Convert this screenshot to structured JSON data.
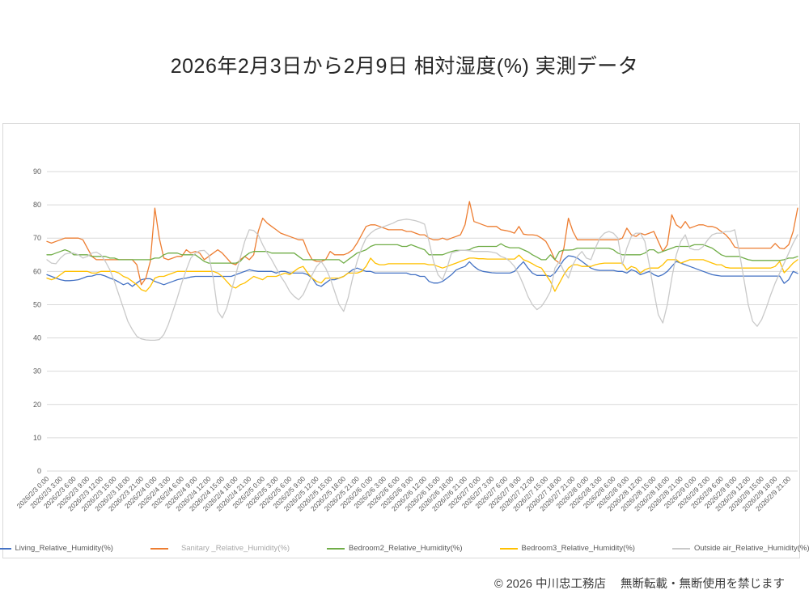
{
  "page": {
    "title": "2026年2月3日から2月9日 相対湿度(%) 実測データ",
    "footer": {
      "copyright": "© 2026 中川忠工務店",
      "notice": "無断転載・無断使用を禁じます"
    }
  },
  "chart_data": {
    "type": "line",
    "title": "2026年2月3日から2月9日 相対湿度(%) 実測データ",
    "xlabel": "",
    "ylabel": "",
    "ylim": [
      0,
      90
    ],
    "y_ticks": [
      0,
      10,
      20,
      30,
      40,
      50,
      60,
      70,
      80,
      90
    ],
    "grid": "horizontal",
    "legend_position": "bottom",
    "x_sampling": "hourly from 2026/2/3 0:00 to 2026/2/9 23:00 (168 points)",
    "x_tick_interval_hours": 3,
    "x_tick_labels": [
      "2026/2/3 0:00",
      "2026/2/3 3:00",
      "2026/2/3 6:00",
      "2026/2/3 9:00",
      "2026/2/3 12:00",
      "2026/2/3 15:00",
      "2026/2/3 18:00",
      "2026/2/3 21:00",
      "2026/2/4 0:00",
      "2026/2/4 3:00",
      "2026/2/4 6:00",
      "2026/2/4 9:00",
      "2026/2/4 12:00",
      "2026/2/4 15:00",
      "2026/2/4 18:00",
      "2026/2/4 21:00",
      "2026/2/5 0:00",
      "2026/2/5 3:00",
      "2026/2/5 6:00",
      "2026/2/5 9:00",
      "2026/2/5 12:00",
      "2026/2/5 15:00",
      "2026/2/5 18:00",
      "2026/2/5 21:00",
      "2026/2/6 0:00",
      "2026/2/6 3:00",
      "2026/2/6 6:00",
      "2026/2/6 9:00",
      "2026/2/6 12:00",
      "2026/2/6 15:00",
      "2026/2/6 18:00",
      "2026/2/6 21:00",
      "2026/2/7 0:00",
      "2026/2/7 3:00",
      "2026/2/7 6:00",
      "2026/2/7 9:00",
      "2026/2/7 12:00",
      "2026/2/7 15:00",
      "2026/2/7 18:00",
      "2026/2/7 21:00",
      "2026/2/8 0:00",
      "2026/2/8 3:00",
      "2026/2/8 6:00",
      "2026/2/8 9:00",
      "2026/2/8 12:00",
      "2026/2/8 15:00",
      "2026/2/8 18:00",
      "2026/2/8 21:00",
      "2026/2/9 0:00",
      "2026/2/9 3:00",
      "2026/2/9 6:00",
      "2026/2/9 9:00",
      "2026/2/9 12:00",
      "2026/2/9 15:00",
      "2026/2/9 18:00",
      "2026/2/9 21:00"
    ],
    "series": [
      {
        "name": "Living_Relative_Humidity(%)",
        "color": "#4472C4",
        "values": [
          59,
          58.5,
          58,
          57.5,
          57.2,
          57.2,
          57.3,
          57.5,
          58,
          58.5,
          58.6,
          59,
          59,
          58.6,
          58,
          57.5,
          56.8,
          56,
          56.5,
          55.5,
          56.5,
          57.5,
          57.8,
          57.8,
          57,
          56.5,
          56,
          56.5,
          57,
          57.5,
          57.8,
          58,
          58.3,
          58.5,
          58.5,
          58.5,
          58.5,
          58.5,
          58.5,
          58.5,
          58.5,
          58.5,
          59,
          59.5,
          60,
          60.5,
          60.2,
          60,
          60,
          60,
          60,
          59.5,
          60,
          60,
          59.5,
          59.5,
          59.5,
          59.5,
          59,
          58,
          56,
          55.5,
          56.5,
          57.5,
          57.5,
          58,
          58.5,
          59.5,
          60.5,
          61,
          60.5,
          60,
          60,
          59.5,
          59.5,
          59.5,
          59.5,
          59.5,
          59.5,
          59.5,
          59.5,
          59,
          59,
          58.5,
          58.5,
          57,
          56.5,
          56.5,
          57,
          58,
          59,
          60.4,
          61,
          61.5,
          62.9,
          61.5,
          60.5,
          60,
          59.8,
          59.6,
          59.5,
          59.5,
          59.5,
          59.5,
          60,
          61.5,
          62.9,
          61,
          59.5,
          58.8,
          58.8,
          58.8,
          58.5,
          59.5,
          61.5,
          63.5,
          64.7,
          64.5,
          64,
          63,
          62,
          61,
          60.5,
          60.3,
          60.3,
          60.3,
          60.3,
          60,
          60,
          59.5,
          60.5,
          60,
          59,
          59.5,
          60,
          59,
          58.5,
          59,
          60,
          61.5,
          63,
          62.5,
          62,
          61.5,
          61,
          60.5,
          60,
          59.5,
          59,
          58.8,
          58.6,
          58.6,
          58.6,
          58.6,
          58.6,
          58.6,
          58.6,
          58.6,
          58.6,
          58.6,
          58.6,
          58.6,
          58.6,
          58.6,
          56.4,
          57.5,
          60,
          59.4
        ]
      },
      {
        "name": "Sanitary _Relative_Humidity(%)",
        "color": "#ED7D31",
        "label_dim": true,
        "values": [
          69,
          68.5,
          69,
          69.5,
          70,
          70,
          70,
          70,
          69.5,
          67,
          64.5,
          63.5,
          63.5,
          63.5,
          63.5,
          63.5,
          63.5,
          63.5,
          63.5,
          63.5,
          62,
          56,
          58,
          63,
          79,
          70,
          64,
          63.5,
          64,
          64.5,
          64.5,
          66.5,
          65.5,
          66,
          65.5,
          63.5,
          64.5,
          65.5,
          66.5,
          65.5,
          64,
          62.5,
          62,
          63.5,
          64.5,
          63.5,
          65,
          72,
          76,
          74.5,
          73.5,
          72.5,
          71.5,
          71,
          70.5,
          70,
          69.5,
          69.5,
          66,
          63.5,
          63,
          63,
          63.5,
          66,
          65,
          65,
          65,
          65.5,
          66.5,
          68.5,
          71,
          73.5,
          74,
          74,
          73.5,
          73,
          72.5,
          72.5,
          72.5,
          72.5,
          72,
          72,
          71.5,
          71,
          71,
          70,
          69.5,
          69.5,
          70,
          69.5,
          70,
          70.5,
          71,
          74,
          81,
          75,
          74.5,
          74,
          73.5,
          73.5,
          73.5,
          72.5,
          72.3,
          72,
          71.5,
          73.5,
          71.2,
          71,
          71,
          70.8,
          70,
          69,
          66.5,
          63.5,
          62.5,
          67,
          76,
          72,
          69.5,
          69.5,
          69.5,
          69.5,
          69.5,
          69.5,
          69.5,
          69.5,
          69.5,
          69.5,
          70,
          73,
          71,
          70.5,
          71.5,
          71,
          71.5,
          72,
          69,
          66,
          68,
          77,
          74,
          73,
          75,
          73,
          73.5,
          74,
          74,
          73.5,
          73.5,
          73,
          72,
          71,
          69.5,
          67.3,
          67,
          67,
          67,
          67,
          67,
          67,
          67,
          67,
          68.4,
          67,
          66.8,
          68,
          72,
          79
        ]
      },
      {
        "name": "Bedroom2_Relative_Humidity(%)",
        "color": "#70AD47",
        "values": [
          65,
          65,
          65.5,
          66,
          66.5,
          66,
          65,
          65,
          65,
          65,
          64.5,
          64.5,
          64.5,
          64.5,
          64,
          64,
          63.5,
          63.5,
          63.5,
          63.5,
          63.5,
          63.5,
          63.5,
          63.5,
          64,
          64,
          65,
          65.5,
          65.5,
          65.5,
          65,
          65,
          65,
          65,
          64,
          63,
          62.5,
          62.5,
          62.5,
          62.5,
          62.5,
          62.5,
          62.5,
          63,
          64.5,
          65.5,
          66,
          66,
          66,
          66,
          65.5,
          65.5,
          65.5,
          65.5,
          65.5,
          65.5,
          64.5,
          63.5,
          63.5,
          63.5,
          63.5,
          63.5,
          63.5,
          63.5,
          63.5,
          63.5,
          62.5,
          63.5,
          64.5,
          65.5,
          66,
          66.5,
          67.5,
          68,
          68,
          68,
          68,
          68,
          68,
          67.5,
          67.5,
          68,
          67.5,
          67,
          66.5,
          65,
          65,
          65,
          65,
          65.5,
          66,
          66.3,
          66.3,
          66.3,
          66.5,
          67.2,
          67.5,
          67.5,
          67.5,
          67.5,
          67.5,
          68.3,
          67.5,
          67.1,
          67.1,
          67.1,
          66.5,
          65.9,
          65,
          64.3,
          63.5,
          63.5,
          65,
          63.5,
          66,
          66.4,
          66.4,
          66.5,
          67,
          67,
          67,
          67,
          67,
          67,
          67,
          67,
          66.5,
          65.5,
          65,
          65,
          65,
          65,
          65,
          65.5,
          66.5,
          66.5,
          65.5,
          66,
          66.5,
          67,
          67.5,
          67.5,
          67.5,
          67.5,
          68,
          68,
          68,
          67.5,
          67,
          66,
          65,
          64.5,
          64.5,
          64.5,
          64.5,
          64,
          63.5,
          63.3,
          63.3,
          63.3,
          63.3,
          63.3,
          63.3,
          63.3,
          63.5,
          64,
          64,
          64.5
        ]
      },
      {
        "name": "Bedroom3_Relative_Humidity(%)",
        "color": "#FFC000",
        "values": [
          58,
          57.5,
          58,
          59,
          60,
          60,
          60,
          60,
          60,
          60,
          59.5,
          59.5,
          60,
          60,
          60,
          60,
          59.5,
          58.5,
          58,
          57,
          56,
          54.5,
          54,
          55.5,
          58,
          58.5,
          58.5,
          59,
          59.5,
          60,
          60,
          60,
          60,
          60,
          60,
          60,
          60,
          60,
          59.5,
          58.5,
          57,
          55.5,
          55,
          56,
          56.5,
          57.5,
          58.5,
          58,
          57.5,
          58.5,
          58.5,
          58.5,
          59,
          59.5,
          59,
          60,
          61,
          61.5,
          59.5,
          58,
          57,
          56.5,
          58,
          58,
          58,
          58,
          58.5,
          59.5,
          59.5,
          59.5,
          60,
          61.5,
          64,
          62.5,
          62,
          62,
          62.3,
          62.3,
          62.3,
          62.3,
          62.3,
          62.3,
          62.3,
          62.3,
          62.3,
          62,
          62,
          61.5,
          61,
          61.5,
          62,
          62.5,
          63,
          63.5,
          64,
          64,
          63.8,
          63.8,
          63.7,
          63.7,
          63.7,
          63.7,
          63.7,
          63.7,
          63.7,
          64.9,
          63.5,
          63,
          62.3,
          61.5,
          61,
          59,
          57,
          54,
          56.5,
          59,
          61,
          62,
          62,
          61.5,
          61.5,
          61.5,
          62,
          62.3,
          62.5,
          62.5,
          62.5,
          62.5,
          62.5,
          60.5,
          61.5,
          61,
          59.5,
          60.5,
          61,
          61,
          61,
          62,
          63.5,
          63.5,
          63.5,
          62.5,
          63,
          63.5,
          63.5,
          63.5,
          63.5,
          63,
          62.5,
          62,
          62,
          61.2,
          61,
          61,
          61,
          61,
          61,
          61,
          61,
          61,
          61,
          61,
          61.5,
          63,
          59.6,
          61,
          62.5,
          63.5
        ]
      },
      {
        "name": "Outside air_Relative_Humidity(%)",
        "color": "#C9C9C9",
        "values": [
          63.5,
          62.5,
          62.3,
          64,
          65.2,
          65.5,
          65.5,
          65,
          64,
          64.5,
          65.5,
          65.8,
          65,
          63,
          60.5,
          57,
          53,
          49,
          45,
          42.5,
          40.5,
          39.7,
          39.4,
          39.3,
          39.3,
          39.5,
          41,
          44,
          48,
          52,
          56.5,
          60.5,
          64,
          65.5,
          66.2,
          66.3,
          65,
          58,
          48,
          46,
          49,
          54,
          59,
          64,
          69,
          72.5,
          72.3,
          71,
          68,
          65.5,
          63.5,
          61,
          58.5,
          56.5,
          54,
          52.5,
          51.5,
          53,
          56,
          59,
          61.5,
          63,
          61,
          58,
          54,
          50,
          48,
          52,
          58,
          63,
          67,
          70,
          71.5,
          72.5,
          73,
          73.5,
          74,
          74.5,
          75.2,
          75.5,
          75.7,
          75.5,
          75.2,
          74.8,
          74.2,
          69,
          63,
          59,
          57.5,
          61,
          65.5,
          66,
          66.3,
          66.3,
          66.2,
          66,
          66,
          66,
          66,
          65.8,
          65.5,
          64.5,
          64,
          63,
          61.5,
          59,
          56,
          52.5,
          50,
          48.5,
          49.5,
          51.5,
          54,
          61,
          63,
          60,
          58,
          62,
          64.5,
          66,
          64,
          63.5,
          67,
          70,
          71.5,
          72,
          71.5,
          70,
          62,
          67,
          70.5,
          71.5,
          71.5,
          69,
          62,
          54,
          47,
          44.5,
          50,
          58,
          65,
          69,
          71,
          67,
          66.5,
          66.5,
          67.5,
          69.5,
          71,
          71.5,
          71.5,
          72,
          72,
          72.5,
          66,
          58,
          50,
          45,
          43.5,
          45.5,
          49,
          53,
          56.5,
          59.5,
          62.5,
          65.5,
          68.5,
          71
        ]
      }
    ]
  }
}
